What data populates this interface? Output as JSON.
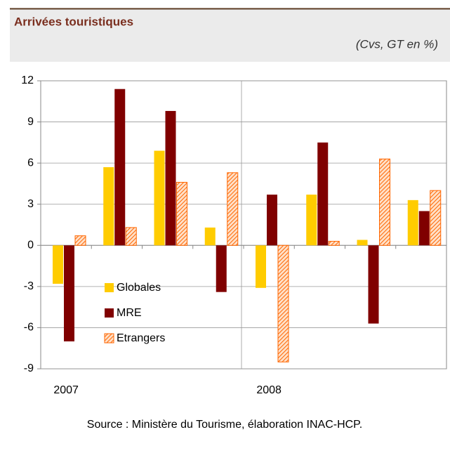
{
  "chart_data": {
    "type": "bar",
    "title": "Arrivées touristiques",
    "subtitle": "(Cvs, GT en %)",
    "categories": [
      "2007",
      null,
      null,
      null,
      "2008",
      null,
      null,
      null
    ],
    "series": [
      {
        "name": "Globales",
        "color": "#ffcc00",
        "values": [
          -2.8,
          5.7,
          6.9,
          1.3,
          -3.1,
          3.7,
          0.4,
          3.3
        ]
      },
      {
        "name": "MRE",
        "color": "#800000",
        "values": [
          -7.0,
          11.4,
          9.8,
          -3.4,
          3.7,
          7.5,
          -5.7,
          2.5
        ]
      },
      {
        "name": "Etrangers",
        "color": "#ff6600",
        "hatched": true,
        "values": [
          0.7,
          1.3,
          4.6,
          5.3,
          -8.5,
          0.3,
          6.3,
          4.0
        ]
      }
    ],
    "ylim": [
      -9,
      12
    ],
    "yticks": [
      -9,
      -6,
      -3,
      0,
      3,
      6,
      9,
      12
    ],
    "grid": true,
    "source": "Source : Ministère du Tourisme, élaboration INAC-HCP."
  }
}
